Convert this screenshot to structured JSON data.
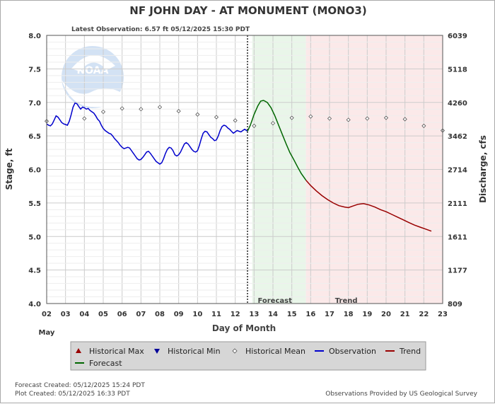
{
  "chart_data": {
    "type": "line",
    "title": "NF JOHN DAY - AT MONUMENT  (MONO3)",
    "subtitle": "Latest Observation: 6.57 ft 05/12/2025 15:30 PDT",
    "xlabel": "Day of Month",
    "month_label": "May",
    "ylabel": "Stage, ft",
    "ylabel_right": "Discharge, cfs",
    "xlim": [
      2,
      23
    ],
    "ylim": [
      4.0,
      8.0
    ],
    "x_ticks": [
      "02",
      "03",
      "04",
      "05",
      "06",
      "07",
      "08",
      "09",
      "10",
      "11",
      "12",
      "13",
      "14",
      "15",
      "16",
      "17",
      "18",
      "19",
      "20",
      "21",
      "22",
      "23"
    ],
    "y_ticks": [
      "4.0",
      "4.5",
      "5.0",
      "5.5",
      "6.0",
      "6.5",
      "7.0",
      "7.5",
      "8.0"
    ],
    "right_ticks": [
      {
        "stage": 4.0,
        "label": "809"
      },
      {
        "stage": 4.5,
        "label": "1177"
      },
      {
        "stage": 5.0,
        "label": "1611"
      },
      {
        "stage": 5.5,
        "label": "2111"
      },
      {
        "stage": 6.0,
        "label": "2714"
      },
      {
        "stage": 6.5,
        "label": "3462"
      },
      {
        "stage": 7.0,
        "label": "4260"
      },
      {
        "stage": 7.5,
        "label": "5118"
      },
      {
        "stage": 8.0,
        "label": "6039"
      }
    ],
    "regions": [
      {
        "label": "Forecast",
        "from": 12.9,
        "to": 15.75,
        "color": "#e9f6e9"
      },
      {
        "label": "Trend",
        "from": 15.75,
        "to": 23.0,
        "color": "#fbe9e9"
      }
    ],
    "now_x": 12.65,
    "series": [
      {
        "name": "Observation",
        "color": "#0000cc",
        "points": [
          [
            2.0,
            6.68
          ],
          [
            2.1,
            6.66
          ],
          [
            2.2,
            6.65
          ],
          [
            2.3,
            6.68
          ],
          [
            2.4,
            6.74
          ],
          [
            2.5,
            6.8
          ],
          [
            2.6,
            6.78
          ],
          [
            2.7,
            6.74
          ],
          [
            2.8,
            6.7
          ],
          [
            2.9,
            6.68
          ],
          [
            3.0,
            6.67
          ],
          [
            3.1,
            6.66
          ],
          [
            3.2,
            6.72
          ],
          [
            3.3,
            6.82
          ],
          [
            3.4,
            6.93
          ],
          [
            3.5,
            6.99
          ],
          [
            3.6,
            6.98
          ],
          [
            3.7,
            6.94
          ],
          [
            3.8,
            6.9
          ],
          [
            3.9,
            6.93
          ],
          [
            4.0,
            6.92
          ],
          [
            4.1,
            6.9
          ],
          [
            4.2,
            6.91
          ],
          [
            4.3,
            6.88
          ],
          [
            4.4,
            6.86
          ],
          [
            4.5,
            6.84
          ],
          [
            4.6,
            6.8
          ],
          [
            4.7,
            6.75
          ],
          [
            4.8,
            6.72
          ],
          [
            4.9,
            6.66
          ],
          [
            5.0,
            6.61
          ],
          [
            5.1,
            6.58
          ],
          [
            5.2,
            6.56
          ],
          [
            5.3,
            6.54
          ],
          [
            5.4,
            6.53
          ],
          [
            5.5,
            6.5
          ],
          [
            5.6,
            6.46
          ],
          [
            5.7,
            6.43
          ],
          [
            5.8,
            6.4
          ],
          [
            5.9,
            6.36
          ],
          [
            6.0,
            6.33
          ],
          [
            6.1,
            6.31
          ],
          [
            6.2,
            6.32
          ],
          [
            6.3,
            6.33
          ],
          [
            6.4,
            6.32
          ],
          [
            6.5,
            6.28
          ],
          [
            6.6,
            6.24
          ],
          [
            6.7,
            6.2
          ],
          [
            6.8,
            6.16
          ],
          [
            6.9,
            6.14
          ],
          [
            7.0,
            6.15
          ],
          [
            7.1,
            6.18
          ],
          [
            7.2,
            6.22
          ],
          [
            7.3,
            6.26
          ],
          [
            7.4,
            6.27
          ],
          [
            7.5,
            6.24
          ],
          [
            7.6,
            6.2
          ],
          [
            7.7,
            6.16
          ],
          [
            7.8,
            6.12
          ],
          [
            7.9,
            6.1
          ],
          [
            8.0,
            6.08
          ],
          [
            8.1,
            6.1
          ],
          [
            8.2,
            6.16
          ],
          [
            8.3,
            6.24
          ],
          [
            8.4,
            6.3
          ],
          [
            8.5,
            6.33
          ],
          [
            8.6,
            6.32
          ],
          [
            8.7,
            6.28
          ],
          [
            8.8,
            6.22
          ],
          [
            8.9,
            6.2
          ],
          [
            9.0,
            6.22
          ],
          [
            9.1,
            6.26
          ],
          [
            9.2,
            6.32
          ],
          [
            9.3,
            6.38
          ],
          [
            9.4,
            6.4
          ],
          [
            9.5,
            6.38
          ],
          [
            9.6,
            6.34
          ],
          [
            9.7,
            6.3
          ],
          [
            9.8,
            6.27
          ],
          [
            9.9,
            6.26
          ],
          [
            10.0,
            6.28
          ],
          [
            10.1,
            6.36
          ],
          [
            10.2,
            6.46
          ],
          [
            10.3,
            6.54
          ],
          [
            10.4,
            6.57
          ],
          [
            10.5,
            6.56
          ],
          [
            10.6,
            6.52
          ],
          [
            10.7,
            6.48
          ],
          [
            10.8,
            6.46
          ],
          [
            10.9,
            6.43
          ],
          [
            11.0,
            6.44
          ],
          [
            11.1,
            6.5
          ],
          [
            11.2,
            6.58
          ],
          [
            11.3,
            6.64
          ],
          [
            11.4,
            6.66
          ],
          [
            11.5,
            6.65
          ],
          [
            11.6,
            6.62
          ],
          [
            11.7,
            6.6
          ],
          [
            11.8,
            6.57
          ],
          [
            11.9,
            6.54
          ],
          [
            12.0,
            6.56
          ],
          [
            12.1,
            6.58
          ],
          [
            12.2,
            6.57
          ],
          [
            12.3,
            6.56
          ],
          [
            12.4,
            6.58
          ],
          [
            12.5,
            6.6
          ],
          [
            12.6,
            6.58
          ],
          [
            12.65,
            6.57
          ]
        ]
      },
      {
        "name": "Forecast",
        "color": "#006600",
        "points": [
          [
            12.65,
            6.57
          ],
          [
            12.8,
            6.66
          ],
          [
            13.0,
            6.82
          ],
          [
            13.2,
            6.95
          ],
          [
            13.35,
            7.02
          ],
          [
            13.5,
            7.03
          ],
          [
            13.7,
            7.0
          ],
          [
            13.9,
            6.92
          ],
          [
            14.1,
            6.8
          ],
          [
            14.3,
            6.66
          ],
          [
            14.5,
            6.52
          ],
          [
            14.7,
            6.38
          ],
          [
            14.9,
            6.25
          ],
          [
            15.1,
            6.15
          ],
          [
            15.3,
            6.04
          ],
          [
            15.5,
            5.94
          ],
          [
            15.75,
            5.84
          ]
        ]
      },
      {
        "name": "Trend",
        "color": "#990000",
        "points": [
          [
            15.75,
            5.84
          ],
          [
            16.0,
            5.76
          ],
          [
            16.3,
            5.68
          ],
          [
            16.6,
            5.61
          ],
          [
            16.9,
            5.55
          ],
          [
            17.2,
            5.5
          ],
          [
            17.5,
            5.46
          ],
          [
            17.8,
            5.44
          ],
          [
            18.0,
            5.43
          ],
          [
            18.2,
            5.45
          ],
          [
            18.5,
            5.48
          ],
          [
            18.8,
            5.49
          ],
          [
            19.1,
            5.47
          ],
          [
            19.4,
            5.44
          ],
          [
            19.7,
            5.4
          ],
          [
            20.0,
            5.37
          ],
          [
            20.3,
            5.33
          ],
          [
            20.6,
            5.29
          ],
          [
            20.9,
            5.25
          ],
          [
            21.2,
            5.21
          ],
          [
            21.5,
            5.17
          ],
          [
            21.8,
            5.14
          ],
          [
            22.1,
            5.11
          ],
          [
            22.4,
            5.08
          ]
        ]
      },
      {
        "name": "Historical Mean",
        "color": "#666666",
        "points": [
          [
            2.0,
            6.72
          ],
          [
            4.0,
            6.76
          ],
          [
            5.0,
            6.86
          ],
          [
            6.0,
            6.91
          ],
          [
            7.0,
            6.9
          ],
          [
            8.0,
            6.93
          ],
          [
            9.0,
            6.87
          ],
          [
            10.0,
            6.82
          ],
          [
            11.0,
            6.78
          ],
          [
            12.0,
            6.73
          ],
          [
            13.0,
            6.65
          ],
          [
            14.0,
            6.69
          ],
          [
            15.0,
            6.77
          ],
          [
            16.0,
            6.79
          ],
          [
            17.0,
            6.76
          ],
          [
            18.0,
            6.74
          ],
          [
            19.0,
            6.76
          ],
          [
            20.0,
            6.77
          ],
          [
            21.0,
            6.75
          ],
          [
            22.0,
            6.65
          ],
          [
            23.0,
            6.58
          ]
        ]
      }
    ],
    "legend": {
      "placement": "bottom",
      "items": [
        {
          "label": "Historical Max",
          "symbol": "triangle-up",
          "color": "#990000"
        },
        {
          "label": "Historical Min",
          "symbol": "triangle-down",
          "color": "#000099"
        },
        {
          "label": "Historical Mean",
          "symbol": "diamond",
          "color": "#555555"
        },
        {
          "label": "Observation",
          "symbol": "line",
          "color": "#0000cc"
        },
        {
          "label": "Trend",
          "symbol": "line",
          "color": "#990000"
        },
        {
          "label": "Forecast",
          "symbol": "line",
          "color": "#006600"
        }
      ]
    },
    "grid": true,
    "logo": "NOAA"
  },
  "footer": {
    "forecast_created": "Forecast Created: 05/12/2025 15:24 PDT",
    "plot_created": "Plot Created: 05/12/2025 16:33 PDT",
    "provider": "Observations Provided by US Geological Survey"
  }
}
